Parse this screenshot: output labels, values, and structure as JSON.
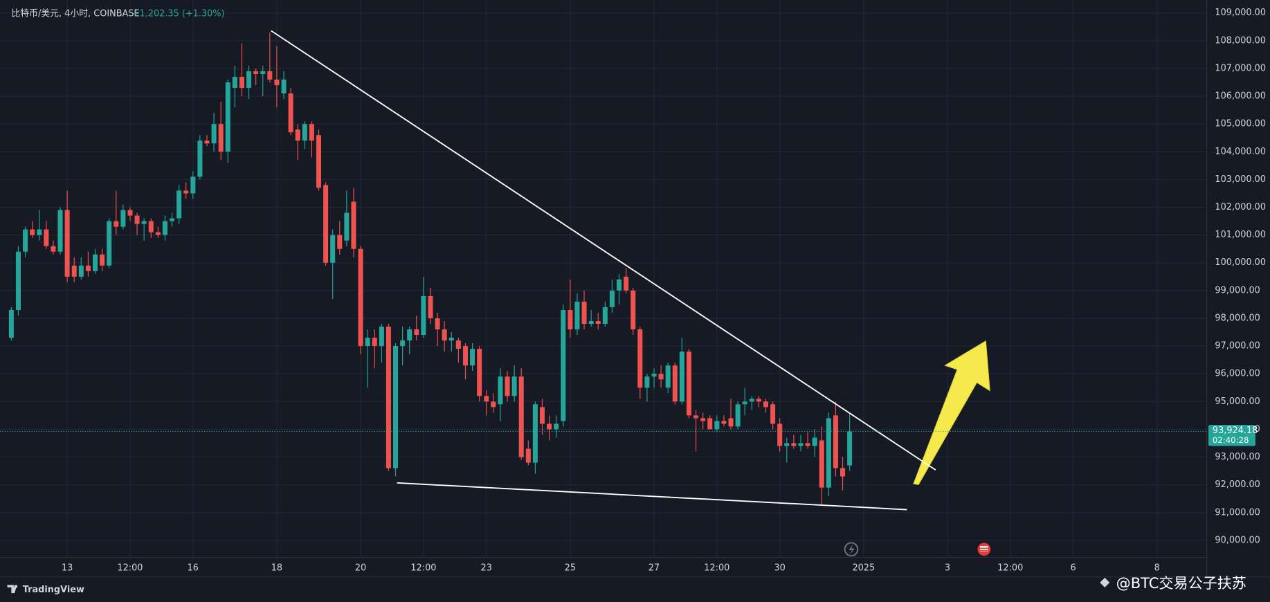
{
  "header": {
    "symbol": "比特币/美元, 4小时, COINBASE",
    "change": "+1,202.35 (+1.30%)"
  },
  "footer": {
    "brand": "TradingView",
    "watermark": "@BTC交易公子扶苏"
  },
  "chart_data": {
    "type": "candlestick",
    "up_color": "#26a69a",
    "down_color": "#ef5350",
    "grid": true,
    "ylim": [
      89384,
      109467
    ],
    "yticks": [
      {
        "value": 90000,
        "label": "90,000.00"
      },
      {
        "value": 91000,
        "label": "91,000.00"
      },
      {
        "value": 92000,
        "label": "92,000.00"
      },
      {
        "value": 93000,
        "label": "93,000.00"
      },
      {
        "value": 94000,
        "label": "94,000.00"
      },
      {
        "value": 95000,
        "label": "95,000.00"
      },
      {
        "value": 96000,
        "label": "96,000.00"
      },
      {
        "value": 97000,
        "label": "97,000.00"
      },
      {
        "value": 98000,
        "label": "98,000.00"
      },
      {
        "value": 99000,
        "label": "99,000.00"
      },
      {
        "value": 100000,
        "label": "100,000.00"
      },
      {
        "value": 101000,
        "label": "101,000.00"
      },
      {
        "value": 102000,
        "label": "102,000.00"
      },
      {
        "value": 103000,
        "label": "103,000.00"
      },
      {
        "value": 104000,
        "label": "104,000.00"
      },
      {
        "value": 105000,
        "label": "105,000.00"
      },
      {
        "value": 106000,
        "label": "106,000.00"
      },
      {
        "value": 107000,
        "label": "107,000.00"
      },
      {
        "value": 108000,
        "label": "108,000.00"
      },
      {
        "value": 109000,
        "label": "109,000.00"
      }
    ],
    "categories": [
      null,
      null,
      null,
      null,
      null,
      null,
      null,
      null,
      "13",
      null,
      null,
      null,
      null,
      null,
      null,
      null,
      null,
      "12:00",
      null,
      null,
      null,
      null,
      null,
      null,
      null,
      null,
      "16",
      null,
      null,
      null,
      null,
      null,
      null,
      null,
      null,
      null,
      null,
      null,
      "18",
      null,
      null,
      null,
      null,
      null,
      null,
      null,
      null,
      null,
      null,
      null,
      "20",
      null,
      null,
      null,
      null,
      null,
      null,
      null,
      null,
      "12:00",
      null,
      null,
      null,
      null,
      null,
      null,
      null,
      null,
      "23",
      null,
      null,
      null,
      null,
      null,
      null,
      null,
      null,
      null,
      null,
      null,
      "25",
      null,
      null,
      null,
      null,
      null,
      null,
      null,
      null,
      null,
      null,
      null,
      "27",
      null,
      null,
      null,
      null,
      null,
      null,
      null,
      null,
      "12:00",
      null,
      null,
      null,
      null,
      null,
      null,
      null,
      null,
      "30",
      null,
      null,
      null,
      null,
      null,
      null,
      null,
      null,
      null,
      null,
      null,
      "2025",
      null,
      null,
      null,
      null,
      null,
      null,
      null,
      null,
      null,
      null,
      null,
      "3",
      null,
      null,
      null,
      null,
      null,
      null,
      null,
      null,
      "12:00",
      null,
      null,
      null,
      null,
      null,
      null,
      null,
      null,
      "6",
      null,
      null,
      null,
      null,
      null,
      null,
      null,
      null,
      null,
      null,
      null,
      "8",
      null,
      null,
      null,
      null,
      null,
      null
    ],
    "open": [
      97300,
      98300,
      100400,
      101200,
      101000,
      101200,
      100600,
      100400,
      101900,
      99900,
      99500,
      99900,
      99700,
      100300,
      99900,
      101500,
      101300,
      101900,
      101700,
      101400,
      101500,
      101100,
      101000,
      101500,
      101600,
      102600,
      102500,
      103100,
      104400,
      104300,
      105000,
      104000,
      106300,
      106700,
      106300,
      106900,
      106800,
      106900,
      106600,
      106100,
      106100,
      104800,
      104400,
      105000,
      104600,
      102800,
      100000,
      101000,
      100800,
      102200,
      100500,
      97000,
      97300,
      97000,
      97700,
      92600,
      97000,
      97200,
      97600,
      97400,
      98800,
      98000,
      97600,
      97200,
      97200,
      97000,
      96300,
      96900,
      95200,
      95000,
      94900,
      95900,
      95200,
      95900,
      93300,
      92800,
      94800,
      94200,
      94000,
      94300,
      98300,
      97600,
      98600,
      97800,
      97900,
      97800,
      98400,
      99000,
      99500,
      99000,
      97600,
      95500,
      95900,
      96000,
      95500,
      96300,
      95000,
      96800,
      94500,
      94400,
      94400,
      94000,
      94300,
      94400,
      94100,
      94900,
      95000,
      95100,
      95000,
      94900,
      94200,
      93400,
      93500,
      93400,
      93500,
      93400,
      93600,
      91900,
      94500,
      92600,
      92700,
      null,
      null,
      null,
      null,
      null,
      null,
      null,
      null,
      null,
      null,
      null,
      null,
      null,
      null,
      null,
      null,
      null,
      null,
      null,
      null,
      null,
      null,
      null,
      null,
      null,
      null,
      null,
      null,
      null,
      null,
      null,
      null,
      null,
      null,
      null,
      null,
      null,
      null,
      null,
      null,
      null,
      null,
      null,
      null,
      null,
      null,
      null,
      null,
      null,
      null
    ],
    "high": [
      98400,
      100600,
      101300,
      101500,
      101900,
      101500,
      100800,
      102000,
      102600,
      100200,
      100200,
      100400,
      100500,
      100500,
      101600,
      102600,
      102100,
      102000,
      101800,
      101600,
      101600,
      101300,
      101700,
      101800,
      102800,
      102900,
      103300,
      104600,
      104600,
      105400,
      105800,
      106600,
      107100,
      107900,
      107100,
      107000,
      107100,
      108300,
      107800,
      106900,
      106300,
      105000,
      105100,
      105100,
      104800,
      102900,
      101200,
      101500,
      102600,
      102700,
      100600,
      97600,
      97600,
      97800,
      97800,
      97100,
      97700,
      97700,
      98100,
      99500,
      99100,
      98200,
      97900,
      97500,
      97300,
      97100,
      97100,
      97000,
      95400,
      95300,
      96200,
      96100,
      96300,
      96200,
      93600,
      95000,
      95100,
      94500,
      94500,
      98500,
      99400,
      98900,
      99000,
      98300,
      98200,
      98600,
      99400,
      99600,
      99800,
      99100,
      97700,
      96000,
      96200,
      96300,
      96400,
      96400,
      97300,
      96900,
      94700,
      94600,
      94500,
      94500,
      94500,
      95100,
      95000,
      95500,
      95200,
      95200,
      95100,
      95000,
      94400,
      93700,
      93800,
      93800,
      93900,
      94000,
      94100,
      94600,
      95000,
      93000,
      94600,
      null,
      null,
      null,
      null,
      null,
      null,
      null,
      null,
      null,
      null,
      null,
      null,
      null,
      null,
      null,
      null,
      null,
      null,
      null,
      null,
      null,
      null,
      null,
      null,
      null,
      null,
      null,
      null,
      null,
      null,
      null,
      null,
      null,
      null,
      null,
      null,
      null,
      null,
      null,
      null,
      null,
      null,
      null,
      null,
      null,
      null,
      null,
      null,
      null,
      null
    ],
    "low": [
      97200,
      98100,
      100200,
      100900,
      100800,
      100500,
      100300,
      100300,
      99300,
      99300,
      99400,
      99500,
      99600,
      99700,
      99800,
      101000,
      101200,
      101500,
      101000,
      100800,
      100900,
      100900,
      100800,
      101300,
      101400,
      102300,
      102300,
      103000,
      104200,
      104000,
      103700,
      103600,
      105600,
      106000,
      105900,
      106400,
      106000,
      106500,
      105600,
      105900,
      104600,
      103700,
      104100,
      103800,
      102600,
      99900,
      98700,
      100300,
      100600,
      100200,
      96700,
      95500,
      96200,
      96400,
      92500,
      92300,
      96300,
      96700,
      97200,
      97300,
      97800,
      97000,
      96800,
      96800,
      96400,
      95800,
      96100,
      95000,
      94500,
      94600,
      94300,
      95000,
      95000,
      92900,
      92700,
      92400,
      93800,
      93600,
      93700,
      94100,
      97300,
      97400,
      97600,
      97700,
      97600,
      97700,
      98200,
      98500,
      98900,
      97400,
      95100,
      95000,
      95500,
      95500,
      95300,
      94900,
      94900,
      94400,
      93200,
      94000,
      94000,
      93900,
      94100,
      94000,
      94000,
      94500,
      94700,
      94800,
      94600,
      94000,
      93200,
      92800,
      93300,
      93200,
      93300,
      93000,
      91300,
      91600,
      92300,
      91800,
      92500,
      null,
      null,
      null,
      null,
      null,
      null,
      null,
      null,
      null,
      null,
      null,
      null,
      null,
      null,
      null,
      null,
      null,
      null,
      null,
      null,
      null,
      null,
      null,
      null,
      null,
      null,
      null,
      null,
      null,
      null,
      null,
      null,
      null,
      null,
      null,
      null,
      null,
      null,
      null,
      null,
      null,
      null,
      null,
      null,
      null,
      null,
      null,
      null,
      null,
      null
    ],
    "close": [
      98300,
      100400,
      101200,
      101000,
      101200,
      100600,
      100400,
      101900,
      99500,
      99500,
      99900,
      99700,
      100300,
      99900,
      101500,
      101300,
      101900,
      101700,
      101400,
      101500,
      101100,
      101000,
      101500,
      101600,
      102600,
      102500,
      103100,
      104400,
      104300,
      105000,
      104000,
      106500,
      106700,
      106300,
      106900,
      106800,
      106900,
      106600,
      106400,
      106600,
      104700,
      104400,
      105000,
      104400,
      102700,
      100000,
      101000,
      100500,
      101800,
      100500,
      97000,
      97300,
      97000,
      97700,
      92600,
      97000,
      97200,
      97600,
      97400,
      98800,
      98000,
      97600,
      97200,
      97300,
      96900,
      96300,
      96900,
      95200,
      95000,
      94800,
      95900,
      95200,
      95900,
      93000,
      92800,
      94900,
      94200,
      94000,
      94200,
      98300,
      97600,
      98600,
      97800,
      97900,
      97800,
      98400,
      99000,
      99400,
      99000,
      97600,
      95500,
      95900,
      96000,
      95800,
      96300,
      95000,
      96800,
      94500,
      94400,
      94300,
      94000,
      94300,
      94200,
      94100,
      94900,
      95000,
      95100,
      95000,
      94800,
      94200,
      93400,
      93500,
      93400,
      93500,
      93400,
      93700,
      91900,
      94400,
      92600,
      92300,
      93924.18,
      null,
      null,
      null,
      null,
      null,
      null,
      null,
      null,
      null,
      null,
      null,
      null,
      null,
      null,
      null,
      null,
      null,
      null,
      null,
      null,
      null,
      null,
      null,
      null,
      null,
      null,
      null,
      null,
      null,
      null,
      null,
      null,
      null,
      null,
      null,
      null,
      null,
      null,
      null,
      null,
      null,
      null,
      null,
      null,
      null,
      null,
      null,
      null,
      null,
      null
    ],
    "last_price": {
      "value": 93924.18,
      "label": "93,924.18"
    },
    "countdown": "02:40:28",
    "trendline_color": "#ffffff",
    "trendlines": [
      {
        "x": [
          37.2,
          132.3
        ],
        "y": [
          108358,
          92537
        ]
      },
      {
        "x": [
          55.2,
          128.2
        ],
        "y": [
          92070,
          91106
        ]
      }
    ]
  }
}
